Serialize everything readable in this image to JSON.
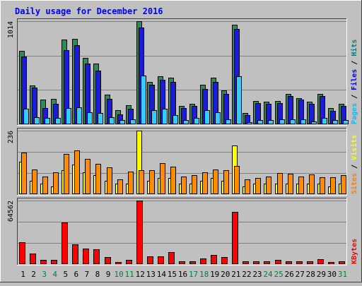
{
  "chart_data": {
    "type": "bar",
    "title": "Daily usage for December 2016",
    "categories": [
      "1",
      "2",
      "3",
      "4",
      "5",
      "6",
      "7",
      "8",
      "9",
      "10",
      "11",
      "12",
      "13",
      "14",
      "15",
      "16",
      "17",
      "18",
      "19",
      "20",
      "21",
      "22",
      "23",
      "24",
      "25",
      "26",
      "27",
      "28",
      "29",
      "30",
      "31"
    ],
    "weekend_days": [
      "3",
      "4",
      "10",
      "11",
      "17",
      "18",
      "24",
      "25",
      "31"
    ],
    "panels": [
      {
        "name": "hits-files-pages",
        "scale_max_label": "1014",
        "ymax": 1014,
        "right_label": [
          {
            "text": "Pages",
            "color": "#00c0ff"
          },
          {
            "text": " / ",
            "color": "#000000"
          },
          {
            "text": "Files",
            "color": "#0000ff"
          },
          {
            "text": " / ",
            "color": "#000000"
          },
          {
            "text": "Hits",
            "color": "#008080"
          }
        ],
        "series": [
          {
            "name": "Hits",
            "color": "#2e8b57",
            "values": [
              720,
              380,
              240,
              250,
              830,
              840,
              650,
              600,
              290,
              140,
              190,
              1014,
              420,
              470,
              460,
              180,
              200,
              390,
              460,
              330,
              980,
              110,
              230,
              220,
              230,
              300,
              260,
              220,
              300,
              160,
              200
            ]
          },
          {
            "name": "Files",
            "color": "#1c1cd8",
            "values": [
              670,
              360,
              160,
              200,
              730,
              780,
              600,
              530,
              250,
              100,
              150,
              950,
              390,
              440,
              420,
              160,
              180,
              350,
              420,
              300,
              940,
              90,
              210,
              200,
              210,
              280,
              240,
              200,
              280,
              130,
              180
            ]
          },
          {
            "name": "Pages",
            "color": "#33ccff",
            "values": [
              150,
              70,
              60,
              60,
              160,
              170,
              120,
              110,
              70,
              40,
              50,
              480,
              140,
              150,
              90,
              40,
              60,
              140,
              120,
              50,
              470,
              20,
              40,
              40,
              50,
              50,
              50,
              30,
              60,
              40,
              40
            ]
          }
        ]
      },
      {
        "name": "visits-sites",
        "scale_max_label": "236",
        "ymax": 236,
        "right_label": [
          {
            "text": "Sites",
            "color": "#ff8000"
          },
          {
            "text": " / ",
            "color": "#000000"
          },
          {
            "text": "Visits",
            "color": "#ffff00"
          }
        ],
        "series": [
          {
            "name": "Visits",
            "color": "#ffff00",
            "values": [
              120,
              50,
              40,
              30,
              90,
              110,
              80,
              70,
              50,
              40,
              40,
              236,
              50,
              60,
              60,
              40,
              40,
              50,
              60,
              50,
              180,
              30,
              40,
              40,
              40,
              40,
              40,
              40,
              40,
              30,
              40
            ]
          },
          {
            "name": "Sites",
            "color": "#ff8c00",
            "values": [
              155,
              92,
              65,
              82,
              150,
              163,
              130,
              113,
              100,
              55,
              84,
              90,
              90,
              115,
              102,
              66,
              70,
              82,
              92,
              88,
              105,
              55,
              60,
              65,
              78,
              75,
              65,
              73,
              63,
              63,
              70
            ]
          }
        ]
      },
      {
        "name": "kbytes",
        "scale_max_label": "64562",
        "ymax": 64562,
        "right_label": [
          {
            "text": "KBytes",
            "color": "#ff0000"
          }
        ],
        "series": [
          {
            "name": "KBytes",
            "color": "#ff0000",
            "values": [
              22000,
              11000,
              4000,
              4000,
              42000,
              20000,
              16000,
              15000,
              7000,
              2500,
              4000,
              64562,
              8000,
              8000,
              12000,
              3000,
              3000,
              6000,
              9000,
              7000,
              53000,
              3000,
              3000,
              3000,
              4000,
              3000,
              3000,
              3000,
              5000,
              2500,
              3000
            ]
          }
        ]
      }
    ]
  },
  "colors": {
    "background": "#c0c0c0",
    "panel": "#c0c0c0",
    "gridline": "#808080",
    "title": "#0000ff",
    "day_weekday": "#000000",
    "day_weekend": "#008040"
  }
}
